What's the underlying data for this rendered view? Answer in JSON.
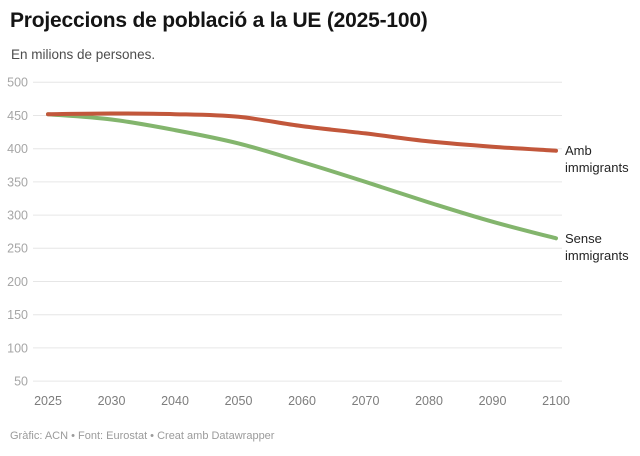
{
  "header": {
    "title": "Projeccions de població a la UE (2025-100)",
    "subtitle": "En milions de persones."
  },
  "footer": {
    "credit": "Gràfic: ACN • Font: Eurostat • Creat amb Datawrapper"
  },
  "chart_data": {
    "type": "line",
    "categories": [
      "2025",
      "2030",
      "2040",
      "2050",
      "2060",
      "2070",
      "2080",
      "2090",
      "2100"
    ],
    "x_spacing": "uniform",
    "series": [
      {
        "name": "Amb immigrants",
        "color": "#c2573b",
        "values": [
          452,
          453,
          452,
          448,
          434,
          423,
          411,
          403,
          397
        ]
      },
      {
        "name": "Sense immigrants",
        "color": "#83b56d",
        "values": [
          452,
          444,
          428,
          408,
          380,
          350,
          319,
          290,
          265
        ]
      }
    ],
    "title": "Projeccions de població a la UE (2025-100)",
    "subtitle_units": "En milions de persones.",
    "xlabel": "",
    "ylabel": "",
    "yticks": [
      500,
      450,
      400,
      350,
      300,
      250,
      200,
      150,
      100,
      50
    ],
    "ylim": [
      50,
      500
    ],
    "grid": true,
    "gridline_color": "#e6e6e6",
    "y_tick_label_color": "#a6a6a6",
    "x_tick_label_color": "#7d7d7d",
    "legend_position": "right-of-line-ends",
    "line_width": 4
  }
}
